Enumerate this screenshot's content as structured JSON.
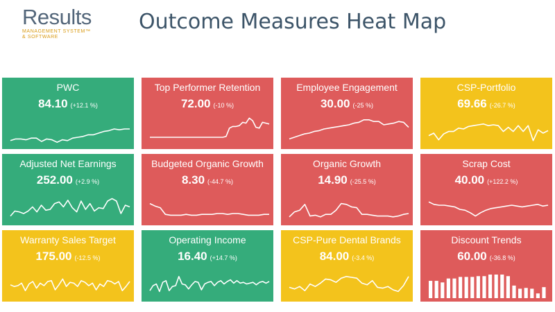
{
  "header": {
    "logo_main": "Results",
    "logo_sub_1": "MANAGEMENT SYSTEM™",
    "logo_sub_2": "& SOFTWARE",
    "title": "Outcome Measures Heat Map"
  },
  "colors": {
    "green": "#35ac7b",
    "red": "#de5b5b",
    "yellow": "#f3c31c",
    "title": "#3c5468",
    "logo": "#53667a",
    "logo_sub": "#d99a12"
  },
  "tiles": [
    {
      "title": "PWC",
      "value": "84.10",
      "change": "(+12.1 %)",
      "status": "green",
      "chart": "line",
      "series": [
        6,
        8,
        8,
        7,
        9,
        9,
        5,
        8,
        7,
        4,
        7,
        6,
        9,
        10,
        11,
        13,
        13,
        15,
        17,
        18,
        20,
        19,
        20,
        20
      ]
    },
    {
      "title": "Top Performer Retention",
      "value": "72.00",
      "change": "(-10 %)",
      "status": "red",
      "chart": "line",
      "series": [
        10,
        10,
        10,
        10,
        10,
        10,
        10,
        10,
        10,
        10,
        10,
        10,
        10,
        10,
        10,
        10,
        10,
        10,
        10,
        10,
        10,
        10,
        10,
        11,
        21,
        23,
        23,
        24,
        28,
        27,
        33,
        30,
        22,
        21,
        28,
        27,
        26
      ]
    },
    {
      "title": "Employee Engagement",
      "value": "30.00",
      "change": "(-25 %)",
      "status": "red",
      "chart": "line",
      "series": [
        8,
        10,
        12,
        14,
        15,
        17,
        18,
        20,
        21,
        22,
        23,
        24,
        25,
        27,
        28,
        31,
        31,
        29,
        29,
        25,
        26,
        27,
        29,
        28,
        22
      ]
    },
    {
      "title": "CSP-Portfolio",
      "value": "69.66",
      "change": "(-26.7 %)",
      "status": "yellow",
      "chart": "line",
      "series": [
        12,
        15,
        7,
        14,
        17,
        17,
        21,
        20,
        23,
        24,
        25,
        26,
        24,
        25,
        24,
        17,
        22,
        17,
        24,
        17,
        24,
        6,
        19,
        15,
        18
      ]
    },
    {
      "title": "Adjusted Net Earnings",
      "value": "252.00",
      "change": "(+2.9 %)",
      "status": "green",
      "chart": "line",
      "series": [
        7,
        13,
        12,
        10,
        13,
        18,
        12,
        20,
        14,
        15,
        22,
        24,
        18,
        26,
        17,
        12,
        25,
        15,
        22,
        13,
        17,
        16,
        25,
        28,
        25,
        10,
        20,
        18
      ]
    },
    {
      "title": "Budgeted Organic Growth",
      "value": "8.30",
      "change": "(-44.7 %)",
      "status": "red",
      "chart": "line",
      "series": [
        22,
        19,
        17,
        9,
        8,
        8,
        8,
        9,
        8,
        8,
        9,
        9,
        9,
        10,
        10,
        9,
        10,
        10,
        9,
        8,
        8,
        8,
        9,
        9
      ]
    },
    {
      "title": "Organic Growth",
      "value": "14.90",
      "change": "(-25.5 %)",
      "status": "red",
      "chart": "line",
      "series": [
        6,
        12,
        14,
        21,
        7,
        8,
        6,
        9,
        9,
        14,
        22,
        21,
        18,
        17,
        9,
        9,
        8,
        7,
        7,
        7,
        6,
        7,
        9,
        10
      ]
    },
    {
      "title": "Scrap Cost",
      "value": "40.00",
      "change": "(+122.2 %)",
      "status": "red",
      "chart": "line",
      "series": [
        24,
        21,
        20,
        20,
        19,
        18,
        15,
        14,
        11,
        7,
        11,
        14,
        16,
        17,
        18,
        19,
        20,
        19,
        18,
        19,
        20,
        21,
        19,
        20
      ]
    },
    {
      "title": "Warranty Sales Target",
      "value": "175.00",
      "change": "(-12.5 %)",
      "status": "yellow",
      "chart": "line",
      "series": [
        16,
        14,
        15,
        18,
        9,
        17,
        20,
        12,
        18,
        15,
        20,
        21,
        10,
        16,
        23,
        14,
        19,
        18,
        14,
        21,
        19,
        15,
        18,
        10,
        17,
        14,
        21,
        20,
        17,
        20,
        9,
        14,
        20
      ]
    },
    {
      "title": "Operating Income",
      "value": "16.40",
      "change": "(+14.7 %)",
      "status": "green",
      "chart": "line",
      "series": [
        9,
        15,
        17,
        8,
        19,
        21,
        9,
        14,
        15,
        26,
        17,
        16,
        11,
        16,
        20,
        19,
        10,
        17,
        19,
        20,
        15,
        19,
        21,
        17,
        20,
        22,
        18,
        21,
        18,
        19,
        17,
        18,
        19,
        16,
        19,
        20,
        18,
        20
      ]
    },
    {
      "title": "CSP-Pure Dental Brands",
      "value": "84.00",
      "change": "(-3.4 %)",
      "status": "yellow",
      "chart": "line",
      "series": [
        13,
        11,
        14,
        9,
        17,
        14,
        18,
        23,
        22,
        19,
        24,
        26,
        25,
        24,
        18,
        16,
        21,
        13,
        12,
        14,
        10,
        8,
        15,
        26
      ]
    },
    {
      "title": "Discount Trends",
      "value": "60.00",
      "change": "(-36.8 %)",
      "status": "red",
      "chart": "bar",
      "series": [
        22,
        22,
        20,
        25,
        25,
        27,
        27,
        27,
        28,
        28,
        30,
        30,
        30,
        28,
        16,
        12,
        13,
        12,
        6,
        14
      ]
    }
  ]
}
